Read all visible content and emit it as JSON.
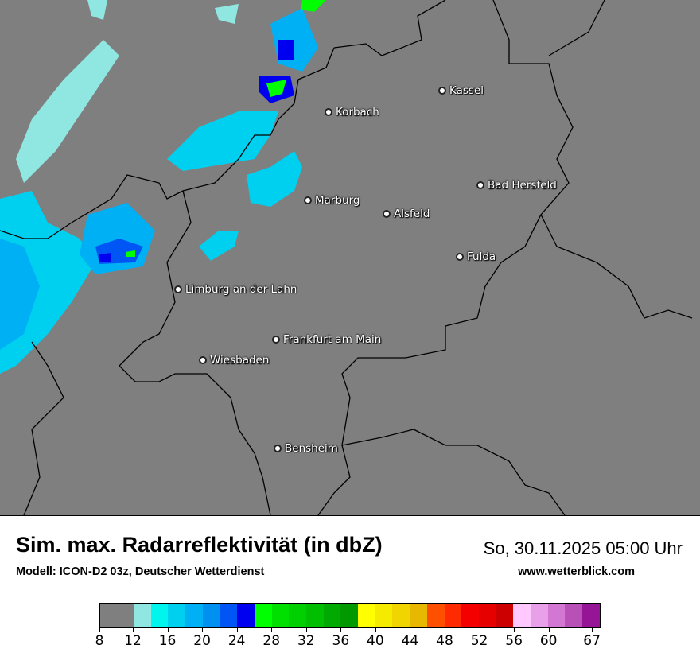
{
  "map": {
    "cities": [
      {
        "name": "Kassel"
      },
      {
        "name": "Korbach"
      },
      {
        "name": "Bad Hersfeld"
      },
      {
        "name": "Marburg"
      },
      {
        "name": "Alsfeld"
      },
      {
        "name": "Fulda"
      },
      {
        "name": "Limburg an der Lahn"
      },
      {
        "name": "Frankfurt am Main"
      },
      {
        "name": "Wiesbaden"
      },
      {
        "name": "Bensheim"
      }
    ],
    "background_color": "#7f7f7f"
  },
  "header": {
    "title": "Sim. max. Radarreflektivität (in dbZ)",
    "subtitle": "Modell: ICON-D2 03z, Deutscher Wetterdienst",
    "datetime": "So, 30.11.2025 05:00 Uhr",
    "website": "www.wetterblick.com"
  },
  "legend": {
    "tick_labels": [
      "8",
      "12",
      "16",
      "20",
      "24",
      "28",
      "32",
      "36",
      "40",
      "44",
      "48",
      "52",
      "56",
      "60",
      "67"
    ],
    "colors": [
      "#7f7f7f",
      "#90e6e0",
      "#00f5ec",
      "#00d0f0",
      "#00b0f5",
      "#0090f0",
      "#0055f5",
      "#0000f0",
      "#00ff00",
      "#00e000",
      "#00d000",
      "#00bf00",
      "#00aa00",
      "#009900",
      "#ffff00",
      "#f5eb00",
      "#f0d500",
      "#e8b800",
      "#ff5000",
      "#ff2a00",
      "#f50000",
      "#e60000",
      "#cc0000",
      "#ffc8ff",
      "#e8a0e8",
      "#d278d2",
      "#b850b8",
      "#961496"
    ]
  }
}
